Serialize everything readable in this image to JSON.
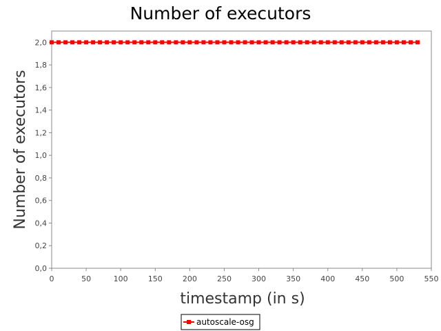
{
  "chart_data": {
    "type": "line",
    "title": "Number of executors",
    "xlabel": "timestamp (in s)",
    "ylabel": "Number of executors",
    "xlim": [
      0,
      550
    ],
    "ylim": [
      0,
      2.1
    ],
    "x_ticks": [
      "0",
      "50",
      "100",
      "150",
      "200",
      "250",
      "300",
      "350",
      "400",
      "450",
      "500",
      "550"
    ],
    "y_ticks": [
      "0,0",
      "0,2",
      "0,4",
      "0,6",
      "0,8",
      "1,0",
      "1,2",
      "1,4",
      "1,6",
      "1,8",
      "2,0"
    ],
    "grid": false,
    "legend_position": "bottom-center",
    "series": [
      {
        "name": "autoscale-osg",
        "color": "#ff0000",
        "marker": "square",
        "x": [
          0,
          10,
          20,
          30,
          40,
          50,
          60,
          70,
          80,
          90,
          100,
          110,
          120,
          130,
          140,
          150,
          160,
          170,
          180,
          190,
          200,
          210,
          220,
          230,
          240,
          250,
          260,
          270,
          280,
          290,
          300,
          310,
          320,
          330,
          340,
          350,
          360,
          370,
          380,
          390,
          400,
          410,
          420,
          430,
          440,
          450,
          460,
          470,
          480,
          490,
          500,
          510,
          520,
          530
        ],
        "y": [
          2,
          2,
          2,
          2,
          2,
          2,
          2,
          2,
          2,
          2,
          2,
          2,
          2,
          2,
          2,
          2,
          2,
          2,
          2,
          2,
          2,
          2,
          2,
          2,
          2,
          2,
          2,
          2,
          2,
          2,
          2,
          2,
          2,
          2,
          2,
          2,
          2,
          2,
          2,
          2,
          2,
          2,
          2,
          2,
          2,
          2,
          2,
          2,
          2,
          2,
          2,
          2,
          2,
          2
        ]
      }
    ]
  }
}
